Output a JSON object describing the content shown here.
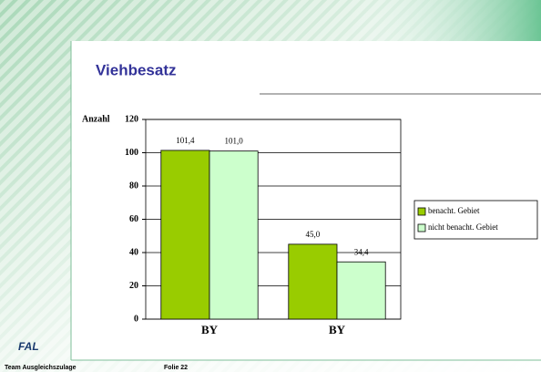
{
  "chart_data": {
    "type": "bar",
    "title": "Viehbesatz",
    "ylabel": "Anzahl",
    "categories": [
      "BY",
      "BY"
    ],
    "series": [
      {
        "name": "benacht. Gebiet",
        "color": "#99cc00",
        "values": [
          101.4,
          45.0
        ],
        "value_labels": [
          "101,4",
          "45,0"
        ]
      },
      {
        "name": "nicht benacht. Gebiet",
        "color": "#ccffcc",
        "values": [
          101.0,
          34.4
        ],
        "value_labels": [
          "101,0",
          "34,4"
        ]
      }
    ],
    "ylim": [
      0,
      120
    ],
    "yticks": [
      0,
      20,
      40,
      60,
      80,
      100,
      120
    ],
    "grid": true,
    "legend": "right"
  },
  "logo": "FAL",
  "footer": {
    "team": "Team Ausgleichszulage",
    "slide": "Folie 22"
  }
}
